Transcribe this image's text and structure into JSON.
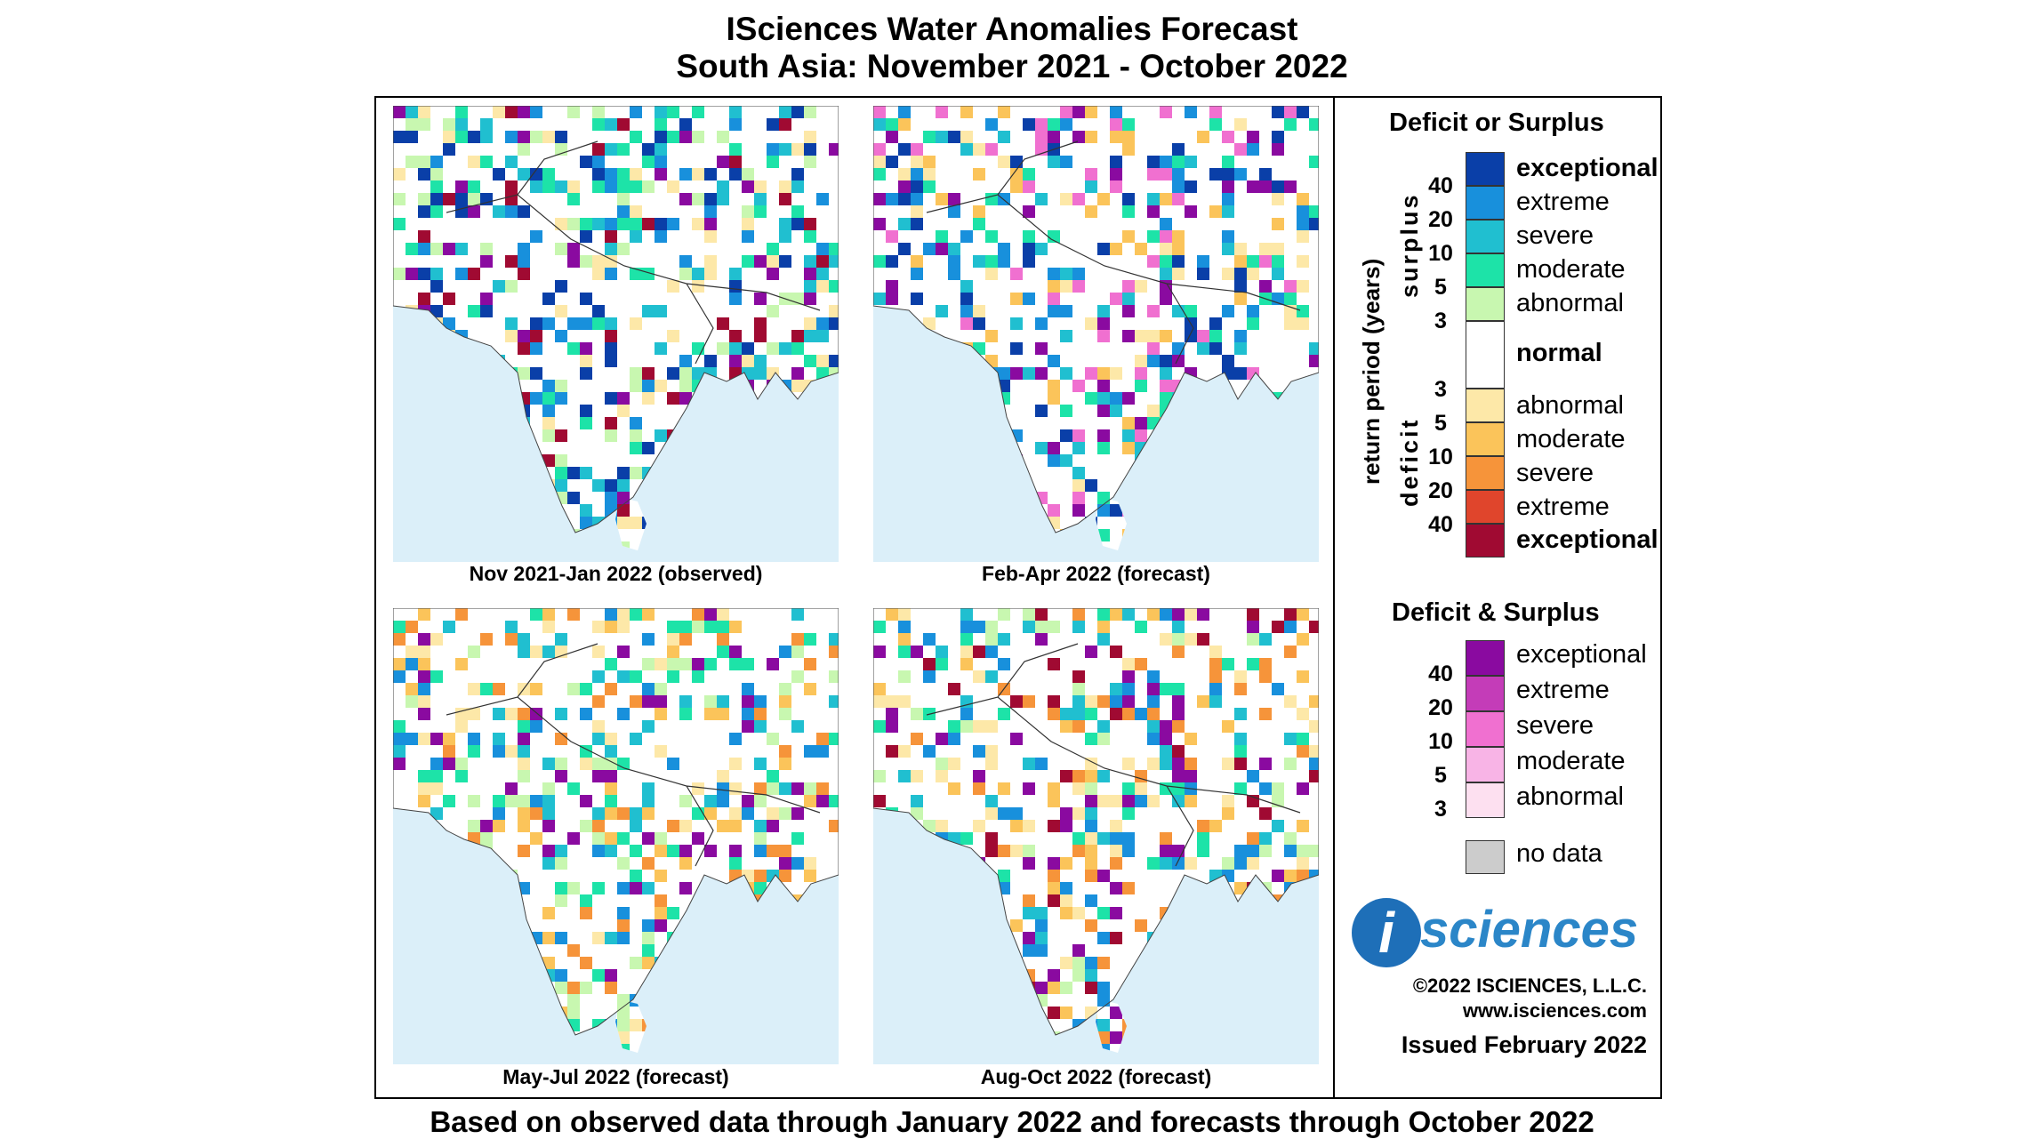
{
  "title_line1": "ISciences Water Anomalies Forecast",
  "title_line2": "South Asia: November 2021 - October 2022",
  "panels": [
    {
      "caption": "Nov 2021-Jan 2022 (observed)"
    },
    {
      "caption": "Feb-Apr 2022 (forecast)"
    },
    {
      "caption": "May-Jul 2022 (forecast)"
    },
    {
      "caption": "Aug-Oct 2022 (forecast)"
    }
  ],
  "legend": {
    "title_deficit_or_surplus": "Deficit or Surplus",
    "axis_label": "return period (years)",
    "surplus_label": "surplus",
    "deficit_label": "deficit",
    "surplus_classes": [
      {
        "label": "exceptional",
        "color": "#0a3fa8"
      },
      {
        "label": "extreme",
        "color": "#1890dc"
      },
      {
        "label": "severe",
        "color": "#20bfd0"
      },
      {
        "label": "moderate",
        "color": "#1de3a8"
      },
      {
        "label": "abnormal",
        "color": "#c8f7b0"
      }
    ],
    "normal": {
      "label": "normal",
      "color": "#ffffff"
    },
    "deficit_classes": [
      {
        "label": "abnormal",
        "color": "#fde8a8"
      },
      {
        "label": "moderate",
        "color": "#fbc45a"
      },
      {
        "label": "severe",
        "color": "#f6943a"
      },
      {
        "label": "extreme",
        "color": "#e0452c"
      },
      {
        "label": "exceptional",
        "color": "#a00a32"
      }
    ],
    "surplus_numbers": [
      "40",
      "20",
      "10",
      "5",
      "3"
    ],
    "deficit_numbers": [
      "3",
      "5",
      "10",
      "20",
      "40"
    ],
    "title_deficit_and_surplus": "Deficit & Surplus",
    "both_classes": [
      {
        "label": "exceptional",
        "color": "#8a0aa0"
      },
      {
        "label": "extreme",
        "color": "#c43cb8"
      },
      {
        "label": "severe",
        "color": "#f070d0"
      },
      {
        "label": "moderate",
        "color": "#f8b4e6"
      },
      {
        "label": "abnormal",
        "color": "#fde0f0"
      }
    ],
    "both_numbers": [
      "40",
      "20",
      "10",
      "5",
      "3"
    ],
    "no_data": {
      "label": "no data",
      "color": "#cccccc"
    }
  },
  "logo": {
    "letter": "i",
    "text": "sciences"
  },
  "copyright": "©2022 ISCIENCES, L.L.C.",
  "website": "www.isciences.com",
  "issued": "Issued February 2022",
  "footer": "Based on observed data through January 2022 and forecasts through October 2022"
}
